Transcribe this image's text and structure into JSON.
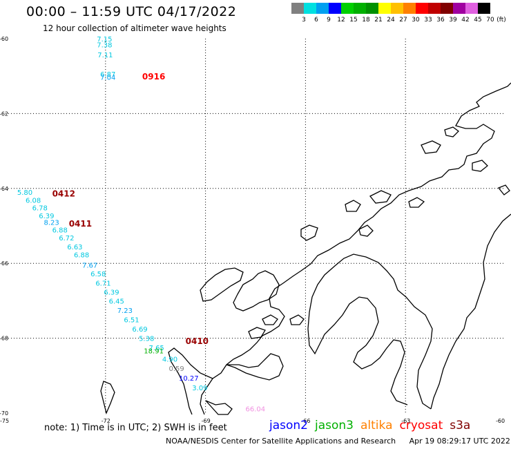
{
  "header": {
    "title": "00:00 – 11:59 UTC 04/17/2022",
    "subtitle": "12 hour collection of altimeter wave heights"
  },
  "legend": {
    "unit": "(ft)",
    "bins": [
      {
        "label": "3",
        "color": "#808080"
      },
      {
        "label": "6",
        "color": "#00e0e0"
      },
      {
        "label": "9",
        "color": "#00a0f0"
      },
      {
        "label": "12",
        "color": "#0000ff"
      },
      {
        "label": "15",
        "color": "#00d000"
      },
      {
        "label": "18",
        "color": "#00b000"
      },
      {
        "label": "21",
        "color": "#009000"
      },
      {
        "label": "24",
        "color": "#ffff00"
      },
      {
        "label": "27",
        "color": "#ffc000"
      },
      {
        "label": "30",
        "color": "#ff8000"
      },
      {
        "label": "33",
        "color": "#ff0000"
      },
      {
        "label": "36",
        "color": "#c00000"
      },
      {
        "label": "39",
        "color": "#800000"
      },
      {
        "label": "42",
        "color": "#a000a0"
      },
      {
        "label": "45",
        "color": "#e060e0"
      },
      {
        "label": "70",
        "color": "#000000"
      }
    ]
  },
  "map": {
    "lat_labels": [
      "-60",
      "-62",
      "-64",
      "-66",
      "-68",
      "-70"
    ],
    "lon_labels": [
      "-75",
      "-72",
      "-69",
      "-66",
      "-63",
      "-60"
    ],
    "lat_range": [
      -70,
      -60
    ],
    "lon_range": [
      -75,
      -60
    ],
    "pass_times": [
      {
        "label": "0916",
        "color": "#ff0000",
        "lon": -70.9,
        "lat": -61.0
      },
      {
        "label": "0412",
        "color": "#990000",
        "lon": -73.6,
        "lat": -64.12
      },
      {
        "label": "0411",
        "color": "#990000",
        "lon": -73.1,
        "lat": -64.93
      },
      {
        "label": "0410",
        "color": "#990000",
        "lon": -69.6,
        "lat": -68.06
      }
    ],
    "observations": [
      {
        "value": "7.15",
        "color": "#00c8e0",
        "lon": -72.26,
        "lat": -60.0
      },
      {
        "value": "7.38",
        "color": "#00c8e0",
        "lon": -72.26,
        "lat": -60.16
      },
      {
        "value": "7.11",
        "color": "#00c8e0",
        "lon": -72.24,
        "lat": -60.42
      },
      {
        "value": "6.87",
        "color": "#00c8e0",
        "lon": -72.16,
        "lat": -60.94
      },
      {
        "value": "7.04",
        "color": "#00a0f0",
        "lon": -72.16,
        "lat": -61.02
      },
      {
        "value": "5.80",
        "color": "#00c8e0",
        "lon": -74.65,
        "lat": -64.1
      },
      {
        "value": "6.08",
        "color": "#00c8e0",
        "lon": -74.4,
        "lat": -64.31
      },
      {
        "value": "6.78",
        "color": "#00c8e0",
        "lon": -74.2,
        "lat": -64.51
      },
      {
        "value": "6.39",
        "color": "#00c8e0",
        "lon": -74.0,
        "lat": -64.72
      },
      {
        "value": "8.23",
        "color": "#00a0f0",
        "lon": -73.85,
        "lat": -64.9
      },
      {
        "value": "6.88",
        "color": "#00c8e0",
        "lon": -73.6,
        "lat": -65.1
      },
      {
        "value": "6.72",
        "color": "#00c8e0",
        "lon": -73.4,
        "lat": -65.31
      },
      {
        "value": "6.63",
        "color": "#00c8e0",
        "lon": -73.15,
        "lat": -65.55
      },
      {
        "value": "6.88",
        "color": "#00c8e0",
        "lon": -72.95,
        "lat": -65.77
      },
      {
        "value": "7.67",
        "color": "#00a0f0",
        "lon": -72.7,
        "lat": -66.04
      },
      {
        "value": "6.58",
        "color": "#00c8e0",
        "lon": -72.45,
        "lat": -66.27
      },
      {
        "value": "6.71",
        "color": "#00c8e0",
        "lon": -72.3,
        "lat": -66.52
      },
      {
        "value": "6.39",
        "color": "#00c8e0",
        "lon": -72.05,
        "lat": -66.76
      },
      {
        "value": "6.45",
        "color": "#00c8e0",
        "lon": -71.9,
        "lat": -67.0
      },
      {
        "value": "7.23",
        "color": "#00a0f0",
        "lon": -71.65,
        "lat": -67.25
      },
      {
        "value": "6.51",
        "color": "#00c8e0",
        "lon": -71.45,
        "lat": -67.5
      },
      {
        "value": "6.69",
        "color": "#00c8e0",
        "lon": -71.2,
        "lat": -67.75
      },
      {
        "value": "5.38",
        "color": "#00c8e0",
        "lon": -71.0,
        "lat": -68.0
      },
      {
        "value": "7.65",
        "color": "#00c8e0",
        "lon": -70.7,
        "lat": -68.25
      },
      {
        "value": "18.91",
        "color": "#00b000",
        "lon": -70.85,
        "lat": -68.33
      },
      {
        "value": "4.90",
        "color": "#00c8e0",
        "lon": -70.3,
        "lat": -68.55
      },
      {
        "value": "0.59",
        "color": "#808080",
        "lon": -70.1,
        "lat": -68.8
      },
      {
        "value": "10.27",
        "color": "#0000ff",
        "lon": -69.8,
        "lat": -69.06
      },
      {
        "value": "3.09",
        "color": "#00c8e0",
        "lon": -69.4,
        "lat": -69.32
      },
      {
        "value": "66.04",
        "color": "#f090e0",
        "lon": -67.8,
        "lat": -69.88
      }
    ]
  },
  "footer": {
    "note": "note: 1) Time is in UTC; 2) SWH is in feet",
    "satellites": [
      {
        "name": "jason2",
        "color": "#0000ff"
      },
      {
        "name": "jason3",
        "color": "#00b000"
      },
      {
        "name": "altika",
        "color": "#ff8000"
      },
      {
        "name": "cryosat",
        "color": "#ff0000"
      },
      {
        "name": "s3a",
        "color": "#800000"
      }
    ],
    "credit": "NOAA/NESDIS Center for Satellite Applications and Research",
    "timestamp": "Apr 19 08:29:17 UTC 2022"
  }
}
